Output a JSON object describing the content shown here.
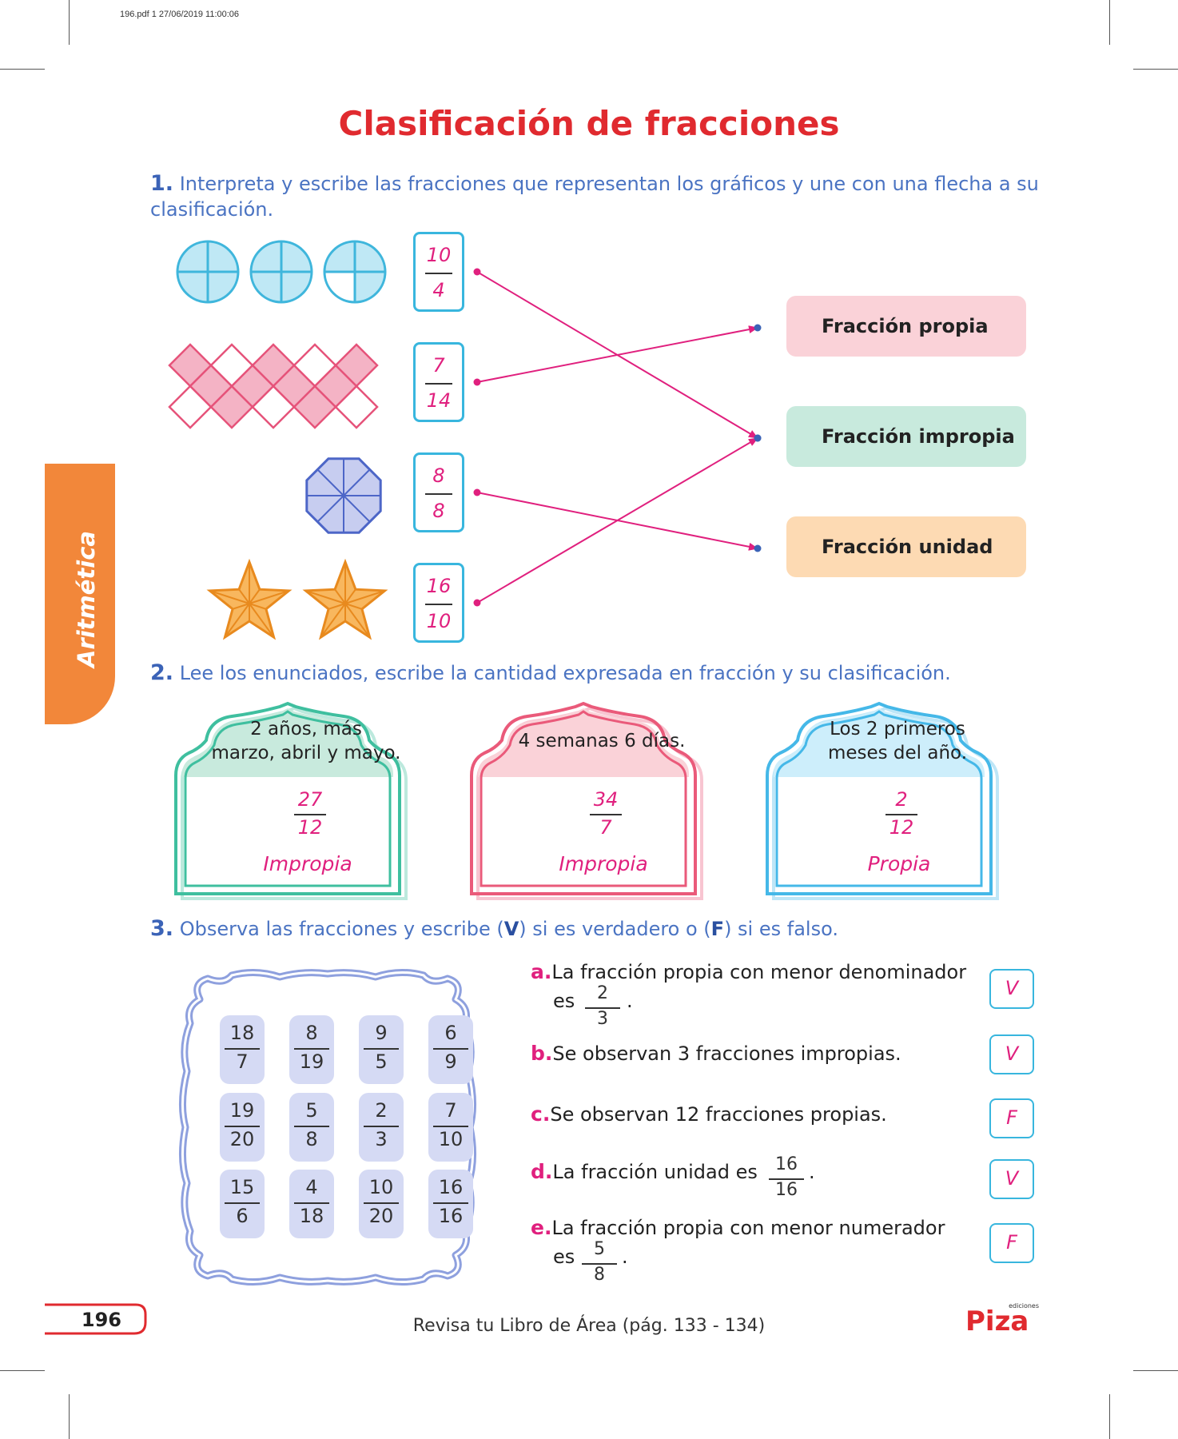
{
  "header_info": "196.pdf   1   27/06/2019   11:00:06",
  "title": "Clasificación de fracciones",
  "side_tab": "Aritmética",
  "q1": {
    "number": "1.",
    "text": "Interpreta y escribe las fracciones que representan los gráficos y une con una flecha a su clasificación.",
    "fractions": [
      {
        "num": "10",
        "den": "4"
      },
      {
        "num": "7",
        "den": "14"
      },
      {
        "num": "8",
        "den": "8"
      },
      {
        "num": "16",
        "den": "10"
      }
    ],
    "classifications": [
      {
        "label": "Fracción propia",
        "color": "#fad2d8"
      },
      {
        "label": "Fracción impropia",
        "color": "#c8eadd"
      },
      {
        "label": "Fracción unidad",
        "color": "#fddab3"
      }
    ],
    "arrows": [
      {
        "from": 0,
        "to": 1
      },
      {
        "from": 1,
        "to": 0
      },
      {
        "from": 2,
        "to": 2
      },
      {
        "from": 3,
        "to": 1
      }
    ]
  },
  "q2": {
    "number": "2.",
    "text": "Lee los enunciados, escribe la cantidad expresada en fracción y su clasificación.",
    "frames": [
      {
        "line1": "2 años, más",
        "line2": "marzo, abril y mayo.",
        "num": "27",
        "den": "12",
        "cls": "Impropia",
        "color": "#3fbf9f",
        "fill": "#c8eadd"
      },
      {
        "line1": "4 semanas 6 días.",
        "line2": "",
        "num": "34",
        "den": "7",
        "cls": "Impropia",
        "color": "#ea5a7a",
        "fill": "#fad2d8"
      },
      {
        "line1": "Los 2 primeros",
        "line2": "meses del año.",
        "num": "2",
        "den": "12",
        "cls": "Propia",
        "color": "#45b8e8",
        "fill": "#cdeefb"
      }
    ]
  },
  "q3": {
    "number": "3.",
    "text_before_v": "Observa las fracciones y escribe (",
    "v": "V",
    "text_mid": ") si es verdadero o (",
    "f": "F",
    "text_after": ") si es falso.",
    "grid": [
      [
        {
          "num": "18",
          "den": "7"
        },
        {
          "num": "8",
          "den": "19"
        },
        {
          "num": "9",
          "den": "5"
        },
        {
          "num": "6",
          "den": "9"
        }
      ],
      [
        {
          "num": "19",
          "den": "20"
        },
        {
          "num": "5",
          "den": "8"
        },
        {
          "num": "2",
          "den": "3"
        },
        {
          "num": "7",
          "den": "10"
        }
      ],
      [
        {
          "num": "15",
          "den": "6"
        },
        {
          "num": "4",
          "den": "18"
        },
        {
          "num": "10",
          "den": "20"
        },
        {
          "num": "16",
          "den": "16"
        }
      ]
    ],
    "statements": [
      {
        "letter": "a.",
        "text": "La fracción propia con menor denominador",
        "cont": "es",
        "num": "2",
        "den": "3",
        "answer": "V"
      },
      {
        "letter": "b.",
        "text": "Se observan 3 fracciones impropias.",
        "answer": "V"
      },
      {
        "letter": "c.",
        "text": "Se observan 12 fracciones propias.",
        "answer": "F"
      },
      {
        "letter": "d.",
        "text": "La fracción unidad es",
        "num": "16",
        "den": "16",
        "answer": "V"
      },
      {
        "letter": "e.",
        "text": "La fracción propia con menor numerador",
        "cont": "es",
        "num": "5",
        "den": "8",
        "answer": "F"
      }
    ]
  },
  "footer": {
    "page": "196",
    "text": "Revisa tu Libro de Área (pág. 133 - 134)",
    "logo": "Piza",
    "logo_small": "ediciones"
  }
}
